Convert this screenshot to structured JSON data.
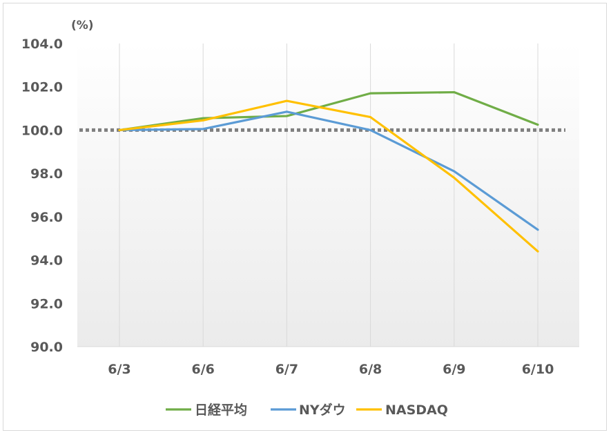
{
  "chart_data": {
    "type": "line",
    "unit_label": "(%)",
    "categories": [
      "6/3",
      "6/6",
      "6/7",
      "6/8",
      "6/9",
      "6/10"
    ],
    "ylim": [
      90,
      104
    ],
    "yticks": [
      "90.0",
      "92.0",
      "94.0",
      "96.0",
      "98.0",
      "100.0",
      "102.0",
      "104.0"
    ],
    "reference_line": {
      "value": 100,
      "style": "dotted",
      "color": "#7f7f7f"
    },
    "grid": {
      "vertical": true,
      "horizontal": false
    },
    "legend_position": "bottom",
    "series": [
      {
        "name": "日経平均",
        "color": "#70ad47",
        "values": [
          100.0,
          100.55,
          100.65,
          101.7,
          101.75,
          100.25
        ]
      },
      {
        "name": "NYダウ",
        "color": "#5b9bd5",
        "values": [
          100.0,
          100.05,
          100.85,
          100.0,
          98.1,
          95.4
        ]
      },
      {
        "name": "NASDAQ",
        "color": "#ffc000",
        "values": [
          100.0,
          100.45,
          101.35,
          100.6,
          97.8,
          94.4
        ]
      }
    ]
  }
}
